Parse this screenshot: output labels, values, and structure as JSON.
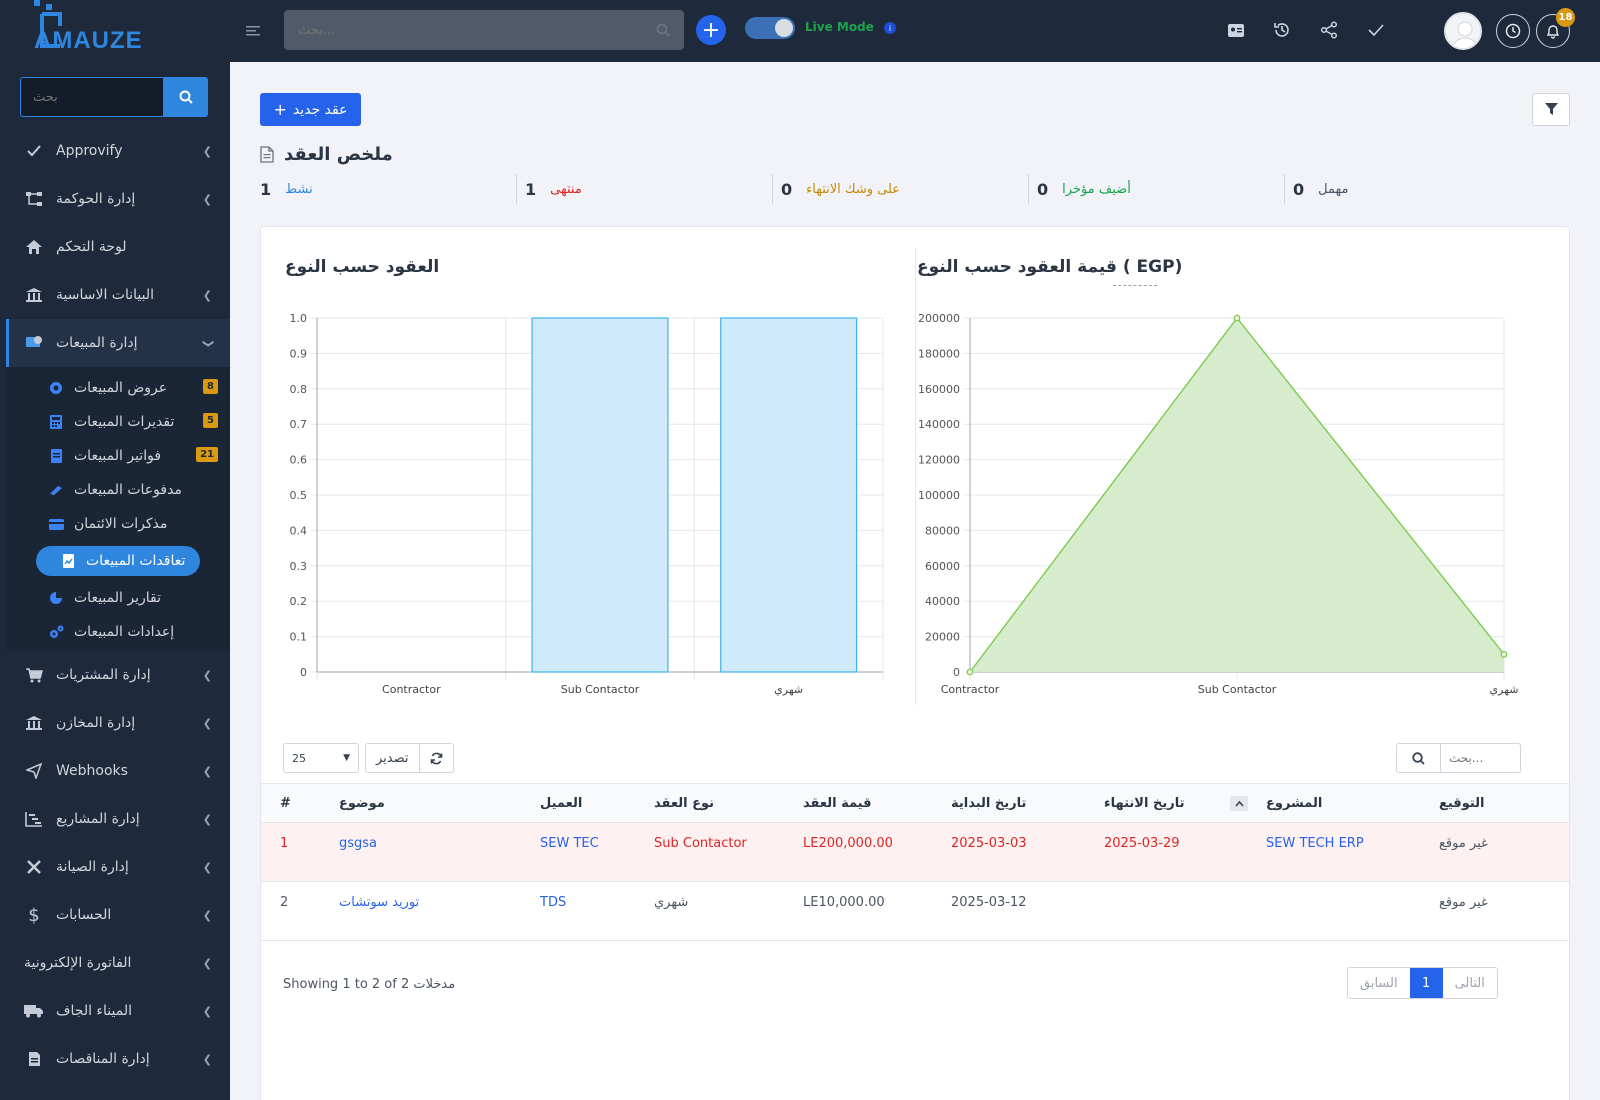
{
  "brand": {
    "name": "AMAUZE"
  },
  "sidebar": {
    "search_placeholder": "بحث",
    "items": [
      {
        "label": "Approvify",
        "icon": "check-icon"
      },
      {
        "label": "إدارة الحوكمة",
        "icon": "hierarchy-icon"
      },
      {
        "label": "لوحة التحكم",
        "icon": "home-icon"
      },
      {
        "label": "البيانات الاساسية",
        "icon": "bank-icon"
      },
      {
        "label": "إدارة المبيعات",
        "icon": "sales-icon"
      }
    ],
    "sub_items": [
      {
        "label": "عروض المبيعات",
        "badge": "8"
      },
      {
        "label": "تقديرات المبيعات",
        "badge": "5"
      },
      {
        "label": "فواتير المبيعات",
        "badge": "21"
      },
      {
        "label": "مدفوعات المبيعات"
      },
      {
        "label": "مذكرات الائتمان"
      },
      {
        "label": "تعاقدات المبيعات"
      },
      {
        "label": "تقارير المبيعات"
      },
      {
        "label": "إعدادات المبيعات"
      }
    ],
    "items_after": [
      {
        "label": "إدارة المشتريات",
        "icon": "cart-icon"
      },
      {
        "label": "إدارة المخازن",
        "icon": "warehouse-icon"
      },
      {
        "label": "Webhooks",
        "icon": "send-icon"
      },
      {
        "label": "إدارة المشاريع",
        "icon": "gantt-icon"
      },
      {
        "label": "إدارة الصيانة",
        "icon": "tools-icon"
      },
      {
        "label": "الحسابات",
        "icon": "dollar-icon"
      },
      {
        "label": "الفاتورة الإلكترونية",
        "icon": ""
      },
      {
        "label": "الميناء الجاف",
        "icon": "truck-icon"
      },
      {
        "label": "إدارة المناقصات",
        "icon": "document-icon"
      }
    ]
  },
  "topbar": {
    "search_placeholder": "...بحث",
    "live_mode": "Live Mode",
    "notification_count": "18"
  },
  "main": {
    "new_contract": "عقد جديد",
    "summary_title": "ملخص العقد",
    "stats": [
      {
        "num": "1",
        "label": "نشط",
        "color": "#2e86de"
      },
      {
        "num": "1",
        "label": "منتهى",
        "color": "#dc2626"
      },
      {
        "num": "0",
        "label": "على وشك الانتهاء",
        "color": "#c58a0b"
      },
      {
        "num": "0",
        "label": "أضيف مؤخرا",
        "color": "#16a34a"
      },
      {
        "num": "0",
        "label": "مهمل",
        "color": "#4b5563"
      }
    ]
  },
  "chart_data": [
    {
      "type": "bar",
      "title": "العقود حسب النوع",
      "categories": [
        "Contractor",
        "Sub Contactor",
        "شهري"
      ],
      "values": [
        0,
        1,
        1
      ],
      "ylim": [
        0,
        1
      ],
      "yticks": [
        "1.0",
        "0.9",
        "0.8",
        "0.7",
        "0.6",
        "0.5",
        "0.4",
        "0.3",
        "0.2",
        "0.1",
        "0"
      ],
      "grid": true,
      "color": "#cfeafb"
    },
    {
      "type": "area",
      "title": "قيمة العقود حسب النوع ( EGP)",
      "categories": [
        "Contractor",
        "Sub Contactor",
        "شهري"
      ],
      "values": [
        0,
        200000,
        10000
      ],
      "ylim": [
        0,
        200000
      ],
      "yticks": [
        "200000",
        "180000",
        "160000",
        "140000",
        "120000",
        "100000",
        "80000",
        "60000",
        "40000",
        "20000",
        "0"
      ],
      "grid": true,
      "color": "#d5ebc9"
    }
  ],
  "table": {
    "page_size": "25",
    "export_label": "تصدير",
    "search_placeholder": "...بحث",
    "headers": [
      "#",
      "موضوع",
      "العميل",
      "نوع العقد",
      "قيمة العقد",
      "تاريخ البداية",
      "تاريخ الانتهاء",
      "المشروع",
      "التوقيع"
    ],
    "rows": [
      {
        "num": "1",
        "subject": "gsgsa",
        "client": "SEW TEC",
        "type": "Sub Contactor",
        "value": "LE200,000.00",
        "start": "2025-03-03",
        "end": "2025-03-29",
        "project": "SEW TECH ERP",
        "signed": "غير موقع"
      },
      {
        "num": "2",
        "subject": "توريد سوتشات",
        "client": "TDS",
        "type": "شهري",
        "value": "LE10,000.00",
        "start": "2025-03-12",
        "end": "",
        "project": "",
        "signed": "غير موقع"
      }
    ],
    "showing": "Showing 1 to 2 of 2 مدخلات",
    "prev_label": "السابق",
    "next_label": "التالى",
    "current_page": "1"
  }
}
